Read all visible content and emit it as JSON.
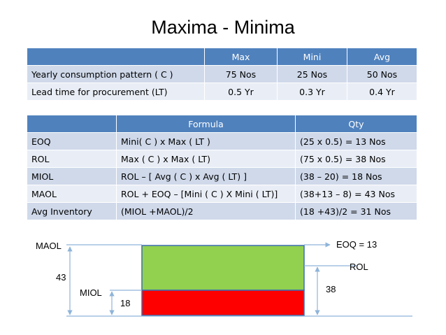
{
  "title": "Maxima - Minima",
  "table1": {
    "headers": [
      "",
      "Max",
      "Mini",
      "Avg"
    ],
    "rows": [
      [
        "Yearly consumption pattern  ( C )",
        "75 Nos",
        "25 Nos",
        "50 Nos"
      ],
      [
        "Lead time for procurement (LT)",
        "0.5 Yr",
        "0.3 Yr",
        "0.4 Yr"
      ]
    ]
  },
  "table2": {
    "headers": [
      "",
      "Formula",
      "Qty"
    ],
    "rows": [
      [
        "EOQ",
        "Mini( C )  x Max ( LT )",
        "(25 x 0.5) = 13 Nos"
      ],
      [
        "ROL",
        "Max ( C ) x Max ( LT)",
        "(75 x 0.5) = 38 Nos"
      ],
      [
        "MIOL",
        "ROL – [ Avg ( C ) x Avg ( LT) ]",
        "(38 – 20) = 18 Nos"
      ],
      [
        "MAOL",
        "ROL + EOQ –  [Mini ( C ) X Mini ( LT)]",
        "(38+13 – 8) = 43 Nos"
      ],
      [
        "Avg Inventory",
        "(MIOL +MAOL)/2",
        "(18 +43)/2 = 31 Nos"
      ]
    ]
  },
  "diagram": {
    "maol_label": "MAOL",
    "miol_label": "MIOL",
    "eoq_label": "EOQ = 13",
    "rol_label": "ROL",
    "maol_value": "43",
    "miol_value": "18",
    "rol_value": "38",
    "colors": {
      "upper_fill": "#92d050",
      "lower_fill": "#ff0000",
      "line": "#8fb4d9"
    }
  }
}
